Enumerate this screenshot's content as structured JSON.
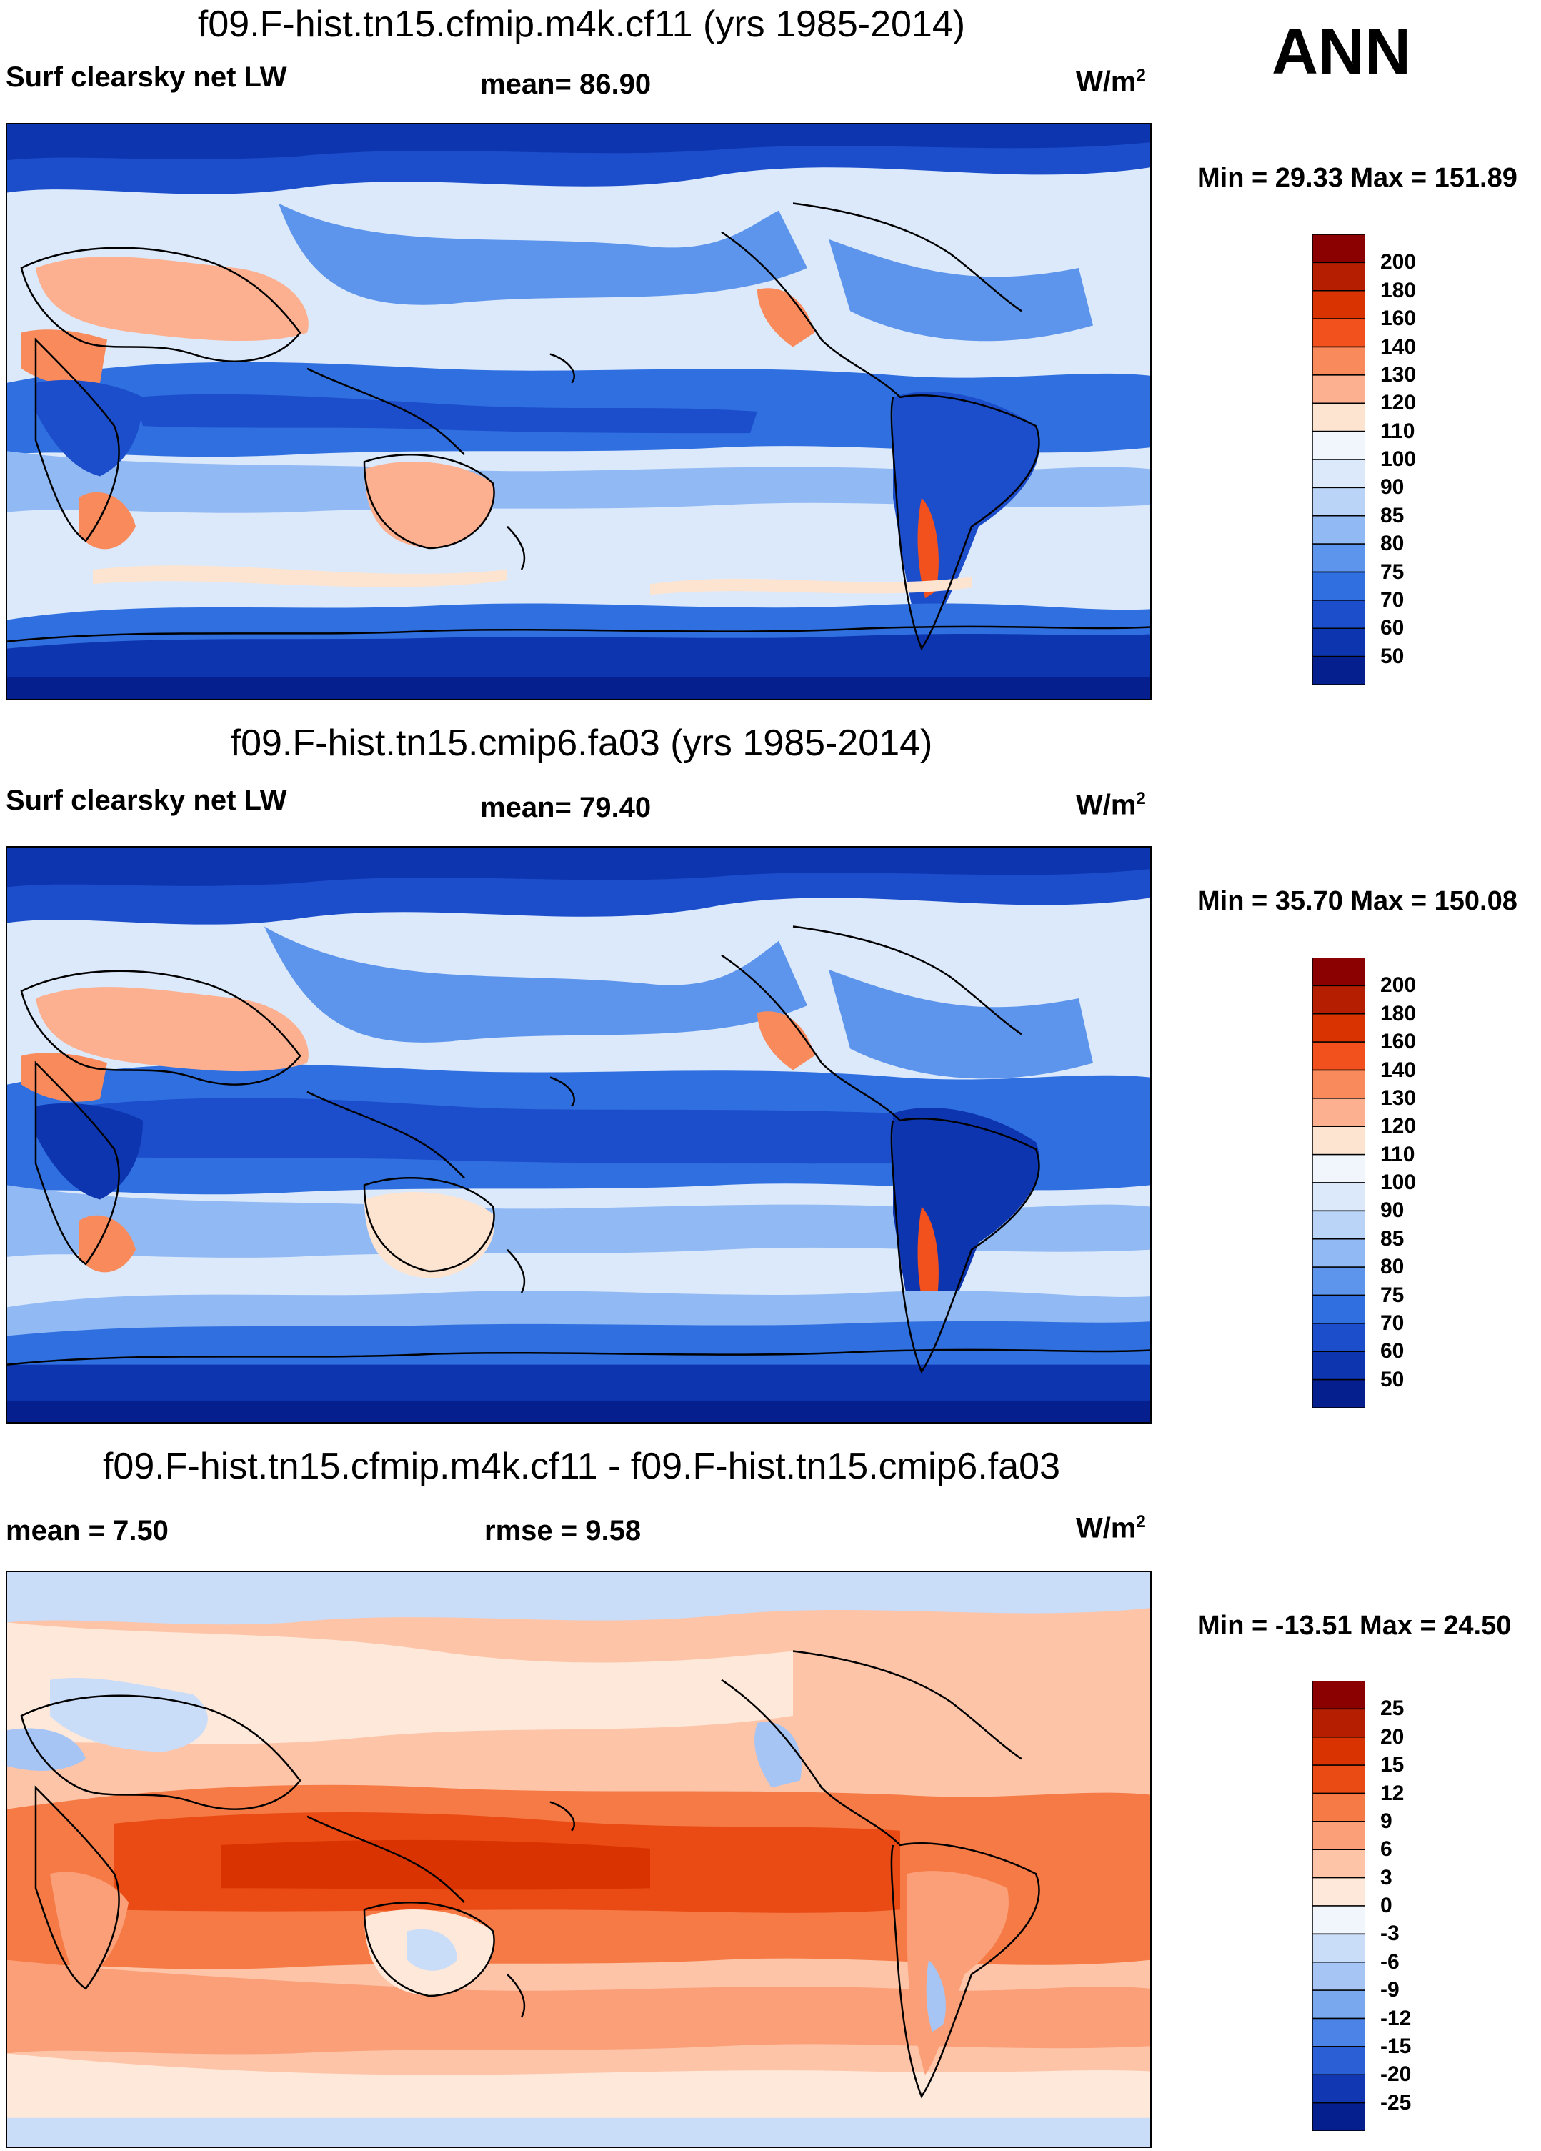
{
  "season": "ANN",
  "units_base": "W/m",
  "units_exp": "2",
  "panels": [
    {
      "title": "f09.F-hist.tn15.cfmip.m4k.cf11 (yrs 1985-2014)",
      "left_label": "Surf clearsky net LW",
      "center_label": "mean=  86.90",
      "minmax": "Min =  29.33 Max = 151.89",
      "levels": [
        "200",
        "180",
        "160",
        "140",
        "130",
        "120",
        "110",
        "100",
        "90",
        "85",
        "80",
        "75",
        "70",
        "60",
        "50"
      ],
      "colors": [
        "#8b0000",
        "#b51e00",
        "#d83300",
        "#f2501c",
        "#f98a5c",
        "#fcb08f",
        "#fde4d0",
        "#f1f6fd",
        "#dbe9fb",
        "#b9d4f7",
        "#91b9f3",
        "#5e95ec",
        "#2f6fe0",
        "#1c4ecc",
        "#0e35b0",
        "#061f8f"
      ]
    },
    {
      "title": "f09.F-hist.tn15.cmip6.fa03 (yrs 1985-2014)",
      "left_label": "Surf clearsky net LW",
      "center_label": "mean=  79.40",
      "minmax": "Min =  35.70 Max = 150.08",
      "levels": [
        "200",
        "180",
        "160",
        "140",
        "130",
        "120",
        "110",
        "100",
        "90",
        "85",
        "80",
        "75",
        "70",
        "60",
        "50"
      ],
      "colors": [
        "#8b0000",
        "#b51e00",
        "#d83300",
        "#f2501c",
        "#f98a5c",
        "#fcb08f",
        "#fde4d0",
        "#f1f6fd",
        "#dbe9fb",
        "#b9d4f7",
        "#91b9f3",
        "#5e95ec",
        "#2f6fe0",
        "#1c4ecc",
        "#0e35b0",
        "#061f8f"
      ]
    },
    {
      "title": "f09.F-hist.tn15.cfmip.m4k.cf11 - f09.F-hist.tn15.cmip6.fa03",
      "left_label": "mean =   7.50",
      "center_label": "rmse =   9.58",
      "minmax": "Min = -13.51 Max =  24.50",
      "levels": [
        "25",
        "20",
        "15",
        "12",
        "9",
        "6",
        "3",
        "0",
        "-3",
        "-6",
        "-9",
        "-12",
        "-15",
        "-20",
        "-25"
      ],
      "colors": [
        "#8b0000",
        "#b51e00",
        "#d83300",
        "#ea4a14",
        "#f57a45",
        "#fb9f78",
        "#fdc4a8",
        "#fde8da",
        "#f1f6fd",
        "#c9dcf8",
        "#a7c5f4",
        "#7aa8ef",
        "#4c83e6",
        "#2a5fd6",
        "#1237b3",
        "#061f8f"
      ]
    }
  ]
}
